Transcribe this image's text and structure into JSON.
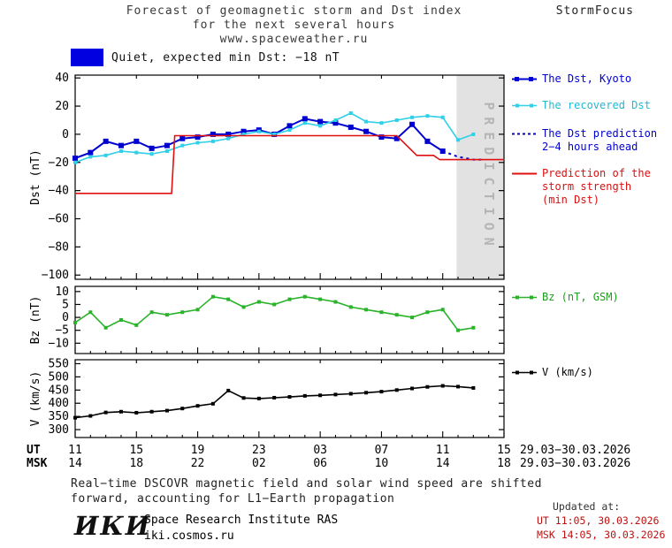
{
  "header": {
    "title_line1": "Forecast of geomagnetic storm and Dst index",
    "title_line2": "for the next several hours",
    "title_line3": "www.spaceweather.ru",
    "brand": "StormFocus"
  },
  "status": {
    "box_color": "#0000e0",
    "label": "Quiet, expected min Dst: −18 nT"
  },
  "axis": {
    "ut_label": "UT",
    "msk_label": "MSK",
    "ut_ticks": [
      "11",
      "15",
      "19",
      "23",
      "03",
      "07",
      "11",
      "15"
    ],
    "msk_ticks": [
      "14",
      "18",
      "22",
      "02",
      "06",
      "10",
      "14",
      "18"
    ],
    "date_range_ut": "29.03−30.03.2026",
    "date_range_msk": "29.03−30.03.2026"
  },
  "legend": {
    "dst_kyoto": "The Dst, Kyoto",
    "recovered": "The recovered Dst",
    "prediction": "The Dst prediction\n2−4 hours ahead",
    "storm_strength": "Prediction of the\nstorm strength\n(min Dst)",
    "bz": "Bz (nT, GSM)",
    "v": "V (km/s)"
  },
  "chart_data": [
    {
      "type": "line",
      "panel": "Dst",
      "ylabel": "Dst (nT)",
      "ylim": [
        -103,
        42
      ],
      "yticks": [
        40,
        20,
        0,
        -20,
        -40,
        -60,
        -80,
        -100
      ],
      "x_range_hours": [
        0,
        28
      ],
      "x_tick_step_hours": 4,
      "prediction_band": {
        "from": 24.9,
        "to": 28,
        "label": "PREDICTION",
        "color": "#e2e2e2"
      },
      "series": [
        {
          "name": "The Dst, Kyoto",
          "color": "#0000d0",
          "width": 2,
          "marker": true,
          "marker_size": 6,
          "points": [
            [
              0,
              -17
            ],
            [
              1,
              -13
            ],
            [
              2,
              -5
            ],
            [
              3,
              -8
            ],
            [
              4,
              -5
            ],
            [
              5,
              -10
            ],
            [
              6,
              -8
            ],
            [
              7,
              -3
            ],
            [
              8,
              -2
            ],
            [
              9,
              0
            ],
            [
              10,
              0
            ],
            [
              11,
              2
            ],
            [
              12,
              3
            ],
            [
              13,
              0
            ],
            [
              14,
              6
            ],
            [
              15,
              11
            ],
            [
              16,
              9
            ],
            [
              17,
              8
            ],
            [
              18,
              5
            ],
            [
              19,
              2
            ],
            [
              20,
              -2
            ],
            [
              21,
              -3
            ],
            [
              22,
              7
            ],
            [
              23,
              -5
            ],
            [
              24,
              -12
            ]
          ]
        },
        {
          "name": "The recovered Dst",
          "color": "#2fd0e8",
          "width": 1.6,
          "marker": true,
          "marker_size": 4,
          "points": [
            [
              0,
              -20
            ],
            [
              1,
              -16
            ],
            [
              2,
              -15
            ],
            [
              3,
              -12
            ],
            [
              4,
              -13
            ],
            [
              5,
              -14
            ],
            [
              6,
              -12
            ],
            [
              7,
              -8
            ],
            [
              8,
              -6
            ],
            [
              9,
              -5
            ],
            [
              10,
              -3
            ],
            [
              11,
              0
            ],
            [
              12,
              2
            ],
            [
              13,
              0
            ],
            [
              14,
              3
            ],
            [
              15,
              8
            ],
            [
              16,
              6
            ],
            [
              17,
              10
            ],
            [
              18,
              15
            ],
            [
              19,
              9
            ],
            [
              20,
              8
            ],
            [
              21,
              10
            ],
            [
              22,
              12
            ],
            [
              23,
              13
            ],
            [
              24,
              12
            ],
            [
              25,
              -4
            ],
            [
              26,
              0
            ]
          ]
        },
        {
          "name": "The Dst prediction 2−4 hours ahead",
          "color": "#0000d0",
          "width": 2,
          "dash": "3,4",
          "points": [
            [
              24,
              -12
            ],
            [
              25,
              -16
            ],
            [
              26,
              -18
            ],
            [
              26.6,
              -18
            ]
          ]
        },
        {
          "name": "Prediction of the storm strength (min Dst)",
          "color": "#e01010",
          "width": 1.6,
          "points": [
            [
              0,
              -42
            ],
            [
              6.3,
              -42
            ],
            [
              6.5,
              -1
            ],
            [
              21,
              -1
            ],
            [
              22.3,
              -15
            ],
            [
              23.4,
              -15
            ],
            [
              23.8,
              -18
            ],
            [
              28,
              -18
            ]
          ]
        }
      ]
    },
    {
      "type": "line",
      "panel": "Bz",
      "ylabel": "Bz (nT)",
      "ylim": [
        -14,
        12
      ],
      "yticks": [
        10,
        5,
        0,
        -5,
        -10
      ],
      "x_range_hours": [
        0,
        28
      ],
      "x_tick_step_hours": 4,
      "series": [
        {
          "name": "Bz (nT, GSM)",
          "color": "#2ab32a",
          "width": 1.6,
          "marker": true,
          "marker_size": 4,
          "points": [
            [
              0,
              -2
            ],
            [
              1,
              2
            ],
            [
              2,
              -4
            ],
            [
              3,
              -1
            ],
            [
              4,
              -3
            ],
            [
              5,
              2
            ],
            [
              6,
              1
            ],
            [
              7,
              2
            ],
            [
              8,
              3
            ],
            [
              9,
              8
            ],
            [
              10,
              7
            ],
            [
              11,
              4
            ],
            [
              12,
              6
            ],
            [
              13,
              5
            ],
            [
              14,
              7
            ],
            [
              15,
              8
            ],
            [
              16,
              7
            ],
            [
              17,
              6
            ],
            [
              18,
              4
            ],
            [
              19,
              3
            ],
            [
              20,
              2
            ],
            [
              21,
              1
            ],
            [
              22,
              0
            ],
            [
              23,
              2
            ],
            [
              24,
              3
            ],
            [
              25,
              -5
            ],
            [
              26,
              -4
            ]
          ]
        }
      ]
    },
    {
      "type": "line",
      "panel": "V",
      "ylabel": "V (km/s)",
      "ylim": [
        270,
        565
      ],
      "yticks": [
        550,
        500,
        450,
        400,
        350,
        300
      ],
      "x_range_hours": [
        0,
        28
      ],
      "x_tick_step_hours": 4,
      "series": [
        {
          "name": "V (km/s)",
          "color": "#000000",
          "width": 1.6,
          "marker": true,
          "marker_size": 4,
          "points": [
            [
              0,
              345
            ],
            [
              1,
              352
            ],
            [
              2,
              365
            ],
            [
              3,
              368
            ],
            [
              4,
              364
            ],
            [
              5,
              368
            ],
            [
              6,
              372
            ],
            [
              7,
              380
            ],
            [
              8,
              390
            ],
            [
              9,
              398
            ],
            [
              10,
              448
            ],
            [
              11,
              420
            ],
            [
              12,
              418
            ],
            [
              13,
              421
            ],
            [
              14,
              424
            ],
            [
              15,
              428
            ],
            [
              16,
              430
            ],
            [
              17,
              433
            ],
            [
              18,
              436
            ],
            [
              19,
              440
            ],
            [
              20,
              444
            ],
            [
              21,
              450
            ],
            [
              22,
              456
            ],
            [
              23,
              462
            ],
            [
              24,
              466
            ],
            [
              25,
              463
            ],
            [
              26,
              458
            ]
          ]
        }
      ]
    }
  ],
  "footer": {
    "note_line1": "Real−time DSCOVR magnetic field and solar wind speed are shifted",
    "note_line2": "forward, accounting for L1−Earth propagation",
    "logo": "ИКИ",
    "institute": "Space Research Institute RAS",
    "site": "iki.cosmos.ru",
    "updated_label": "Updated at:",
    "updated_ut": "UT  11:05, 30.03.2026",
    "updated_msk": "MSK 14:05, 30.03.2026"
  }
}
